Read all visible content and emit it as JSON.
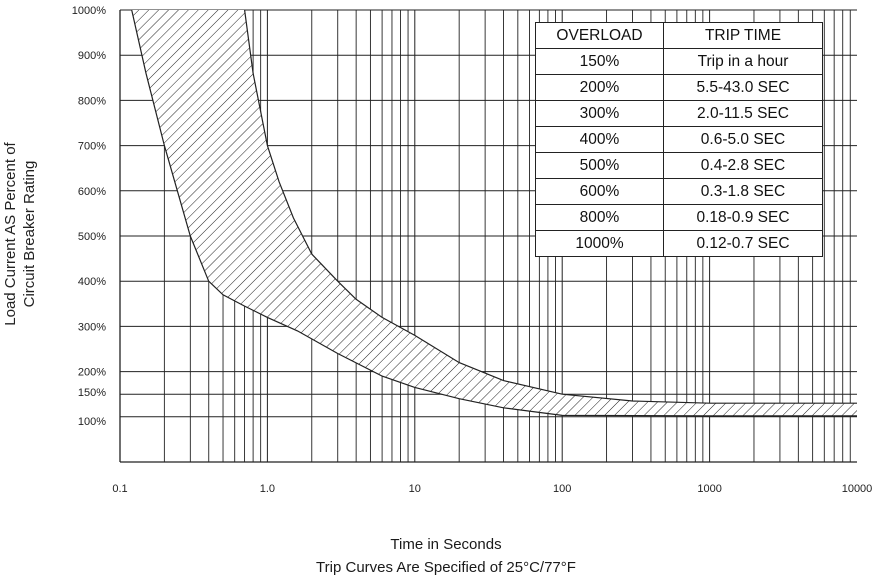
{
  "chart_data": {
    "type": "area",
    "xlabel": "Time in Seconds",
    "subtitle": "Trip Curves Are Specified of 25°C/77°F",
    "ylabel_lines": [
      "Load Current AS Percent of",
      "Circuit Breaker Rating"
    ],
    "x_scale": "log",
    "xlim": [
      0.1,
      10000
    ],
    "ylim": [
      0,
      1000
    ],
    "x_tick_labels": [
      "0.1",
      "1.0",
      "10",
      "100",
      "1000",
      "10000"
    ],
    "y_tick_values": [
      100,
      150,
      200,
      300,
      400,
      500,
      600,
      700,
      800,
      900,
      1000
    ],
    "y_tick_labels": [
      "100%",
      "150%",
      "200%",
      "300%",
      "400%",
      "500%",
      "600%",
      "700%",
      "800%",
      "900%",
      "1000%"
    ],
    "grid": true,
    "band": {
      "left_curve": {
        "x": [
          0.12,
          0.15,
          0.2,
          0.3,
          0.4,
          0.5,
          0.7,
          1.0,
          1.6,
          3,
          6,
          10,
          20,
          40,
          100,
          1000,
          10000
        ],
        "y": [
          1000,
          860,
          700,
          500,
          400,
          370,
          345,
          320,
          290,
          240,
          190,
          165,
          140,
          120,
          103,
          102,
          102
        ]
      },
      "right_curve": {
        "x": [
          0.7,
          0.8,
          1.0,
          1.2,
          1.5,
          2,
          3,
          4,
          6,
          10,
          20,
          40,
          100,
          300,
          1000,
          10000
        ],
        "y": [
          1000,
          860,
          700,
          620,
          540,
          460,
          400,
          360,
          320,
          280,
          220,
          180,
          150,
          135,
          130,
          130
        ]
      }
    },
    "legend_table": {
      "headers": [
        "OVERLOAD",
        "TRIP TIME"
      ],
      "rows": [
        [
          "150%",
          "Trip in a hour"
        ],
        [
          "200%",
          "5.5-43.0 SEC"
        ],
        [
          "300%",
          "2.0-11.5 SEC"
        ],
        [
          "400%",
          "0.6-5.0 SEC"
        ],
        [
          "500%",
          "0.4-2.8 SEC"
        ],
        [
          "600%",
          "0.3-1.8 SEC"
        ],
        [
          "800%",
          "0.18-0.9 SEC"
        ],
        [
          "1000%",
          "0.12-0.7 SEC"
        ]
      ]
    }
  }
}
